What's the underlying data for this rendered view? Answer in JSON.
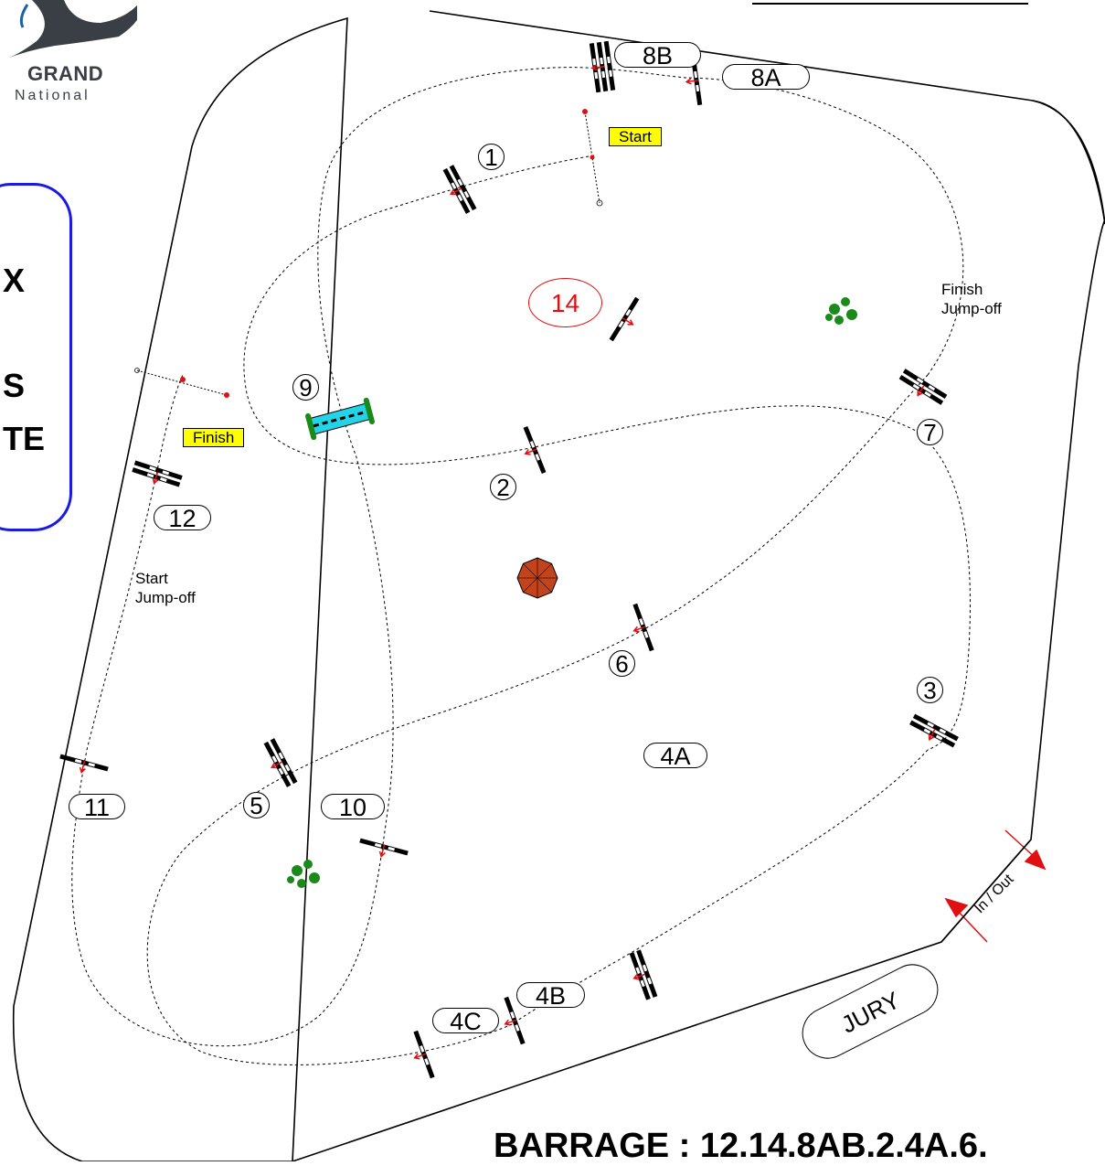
{
  "logo": {
    "line1": "GRAND",
    "line2": "National"
  },
  "info_box": {
    "lines": [
      "X",
      "S",
      "TE"
    ]
  },
  "barrage": "BARRAGE : 12.14.8AB.2.4A.6.",
  "markers": {
    "start": "Start",
    "finish": "Finish",
    "start_jumpoff": "Start\nJump-off",
    "finish_jumpoff": "Finish\nJump-off",
    "jury": "JURY",
    "in_out": "In / Out"
  },
  "obstacle_labels": {
    "o1": "1",
    "o2": "2",
    "o3": "3",
    "o4a": "4A",
    "o4b": "4B",
    "o4c": "4C",
    "o5": "5",
    "o6": "6",
    "o7": "7",
    "o8a": "8A",
    "o8b": "8B",
    "o9": "9",
    "o10": "10",
    "o11": "11",
    "o12": "12",
    "o14": "14"
  },
  "colors": {
    "arena": "#000000",
    "route": "#000000",
    "arrow": "#e01010",
    "water": "#22d4e6",
    "water_edge": "#1a8a1a",
    "shrub": "#1a8a1a",
    "umbrella": "#c2431c",
    "highlight_box": "#1a1ae6",
    "tag": "#ffff00"
  }
}
